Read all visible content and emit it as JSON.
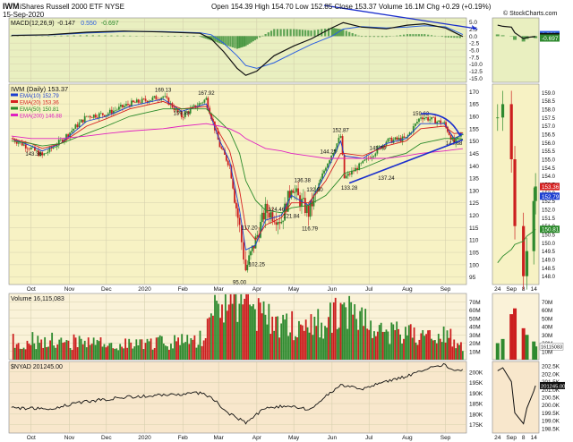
{
  "header": {
    "symbol": "IWM",
    "name": "iShares Russell 2000 ETF",
    "exchange": "NYSE",
    "date": "15-Sep-2020",
    "ohlc": {
      "open_label": "Open",
      "open": "154.39",
      "high_label": "High",
      "high": "154.70",
      "low_label": "Low",
      "low": "152.85",
      "close_label": "Close",
      "close": "153.37",
      "volume_label": "Volume",
      "volume": "16.1M",
      "chg_label": "Chg",
      "chg": "+0.29 (+0.19%)"
    },
    "copyright": "© StockCharts.com"
  },
  "colors": {
    "price_bg": "#f7f2c4",
    "up": "#2f8a2f",
    "down": "#cc1f1f",
    "ema10": "#1c3fd1",
    "ema20": "#d62020",
    "ema50": "#2a8a2a",
    "ema200": "#e020c0",
    "annotation": "#1b2fcc"
  },
  "chart_data": [
    {
      "type": "line",
      "title": "MACD(12,26,9) -0.147, 0.550, -0.697",
      "legend": [
        {
          "name": "MACD(12,26,9)",
          "color": "#111111"
        },
        {
          "name": "-0.147",
          "color": "#111111"
        },
        {
          "name": "0.550",
          "color": "#2a5fe0"
        },
        {
          "name": "-0.697",
          "color": "#2a8a2a"
        }
      ],
      "yticks": [
        5.0,
        2.5,
        0.0,
        -2.5,
        -5.0,
        -7.5,
        -10.0,
        -12.5,
        -15.0
      ],
      "ylim": [
        -16.5,
        6.5
      ],
      "x": [
        "2019-09-15",
        "2019-10-15",
        "2019-11-15",
        "2019-12-15",
        "2020-01-15",
        "2020-02-15",
        "2020-02-24",
        "2020-03-05",
        "2020-03-16",
        "2020-03-23",
        "2020-04-01",
        "2020-04-15",
        "2020-05-01",
        "2020-05-15",
        "2020-06-01",
        "2020-06-10",
        "2020-06-25",
        "2020-07-15",
        "2020-08-01",
        "2020-08-15",
        "2020-09-01",
        "2020-09-15"
      ],
      "series": [
        {
          "name": "-0.147",
          "values": [
            0.2,
            0.5,
            1.4,
            1.8,
            1.5,
            1.0,
            -1.0,
            -5.5,
            -11.5,
            -14.0,
            -12.5,
            -7.0,
            -3.5,
            -1.0,
            3.0,
            4.8,
            3.2,
            2.6,
            3.9,
            4.4,
            2.9,
            -0.15
          ]
        },
        {
          "name": "0.550",
          "values": [
            0.3,
            0.4,
            1.1,
            1.6,
            1.6,
            1.2,
            0.5,
            -2.5,
            -7.0,
            -10.5,
            -11.5,
            -9.5,
            -6.0,
            -3.0,
            0.0,
            2.5,
            3.4,
            2.9,
            3.2,
            3.7,
            3.3,
            0.55
          ]
        },
        {
          "name": "-0.697",
          "type": "histogram",
          "values": [
            -0.1,
            0.1,
            0.3,
            0.2,
            -0.1,
            -0.2,
            -1.5,
            -3.0,
            -4.5,
            -3.5,
            -1.0,
            2.5,
            2.5,
            2.0,
            3.0,
            2.3,
            -0.2,
            -0.3,
            0.7,
            0.7,
            -0.4,
            -0.7
          ]
        }
      ]
    },
    {
      "type": "candlestick",
      "title": "IWM (Daily) 153.37",
      "legend": [
        {
          "name": "IWM (Daily) 153.37",
          "color": "#111111"
        },
        {
          "name": "EMA(10) 152.79",
          "color": "#1c3fd1"
        },
        {
          "name": "EMA(20) 153.36",
          "color": "#d62020"
        },
        {
          "name": "EMA(50) 150.81",
          "color": "#2a8a2a"
        },
        {
          "name": "EMA(200) 146.88",
          "color": "#e020c0"
        }
      ],
      "yticks": [
        170,
        165,
        160,
        155,
        150,
        145,
        140,
        135,
        130,
        125,
        120,
        115,
        110,
        105,
        100,
        95
      ],
      "ylim": [
        92,
        173
      ],
      "x": [
        "2019-09-15",
        "2019-10-01",
        "2019-10-10",
        "2019-10-25",
        "2019-11-15",
        "2019-12-01",
        "2019-12-20",
        "2020-01-16",
        "2020-01-31",
        "2020-02-20",
        "2020-03-02",
        "2020-03-10",
        "2020-03-18",
        "2020-03-23",
        "2020-03-31",
        "2020-04-08",
        "2020-04-21",
        "2020-04-29",
        "2020-05-13",
        "2020-05-27",
        "2020-06-08",
        "2020-06-11",
        "2020-06-26",
        "2020-07-15",
        "2020-07-31",
        "2020-08-12",
        "2020-08-31",
        "2020-09-08",
        "2020-09-15"
      ],
      "close": [
        151,
        147,
        144,
        150,
        160,
        161,
        165,
        168,
        160,
        167,
        148,
        140,
        115,
        98,
        110,
        122,
        118,
        131,
        121,
        140,
        152,
        135,
        141,
        150,
        151,
        160,
        157,
        149,
        153
      ],
      "series": [
        {
          "name": "EMA(10) 152.79",
          "values": [
            151,
            148,
            146,
            149,
            158,
            160,
            164,
            167,
            162,
            165,
            150,
            142,
            122,
            106,
            108,
            118,
            120,
            128,
            124,
            137,
            150,
            144,
            143,
            149,
            151,
            157,
            157,
            151,
            152.79
          ]
        },
        {
          "name": "EMA(20) 153.36",
          "values": [
            151,
            149,
            147,
            149,
            156,
            159,
            163,
            166,
            163,
            164,
            153,
            146,
            130,
            115,
            110,
            116,
            119,
            125,
            125,
            134,
            145,
            145,
            144,
            148,
            150,
            155,
            156,
            153,
            153.36
          ]
        },
        {
          "name": "EMA(50) 150.81",
          "values": [
            150,
            149,
            148,
            149,
            153,
            156,
            160,
            163,
            163,
            163,
            158,
            154,
            145,
            134,
            126,
            122,
            121,
            123,
            124,
            128,
            135,
            137,
            139,
            143,
            145,
            149,
            151,
            151,
            150.81
          ]
        },
        {
          "name": "EMA(200) 146.88",
          "values": [
            152,
            151,
            151,
            151,
            152,
            153,
            154,
            155,
            156,
            157,
            156,
            155,
            153,
            151,
            149,
            147,
            146,
            145,
            144,
            143,
            143,
            143,
            143,
            143,
            144,
            145,
            146,
            146.5,
            146.88
          ]
        }
      ],
      "annotations": [
        {
          "text": "143.36",
          "x": "2019-10-03",
          "y": 143.36
        },
        {
          "text": "169.13",
          "x": "2020-01-16",
          "y": 169.13
        },
        {
          "text": "159.88",
          "x": "2020-01-31",
          "y": 159.88
        },
        {
          "text": "167.92",
          "x": "2020-02-20",
          "y": 167.92
        },
        {
          "text": "95.00",
          "x": "2020-03-18",
          "y": 95.0
        },
        {
          "text": "102.25",
          "x": "2020-04-01",
          "y": 102.25
        },
        {
          "text": "117.20",
          "x": "2020-03-26",
          "y": 117.2
        },
        {
          "text": "124.46",
          "x": "2020-04-17",
          "y": 124.46
        },
        {
          "text": "121.84",
          "x": "2020-04-29",
          "y": 121.84
        },
        {
          "text": "136.38",
          "x": "2020-05-08",
          "y": 136.38
        },
        {
          "text": "132.50",
          "x": "2020-05-18",
          "y": 132.5
        },
        {
          "text": "116.79",
          "x": "2020-05-14",
          "y": 116.79
        },
        {
          "text": "144.25",
          "x": "2020-05-29",
          "y": 144.25
        },
        {
          "text": "152.87",
          "x": "2020-06-08",
          "y": 152.87
        },
        {
          "text": "133.28",
          "x": "2020-06-15",
          "y": 133.28
        },
        {
          "text": "145.70",
          "x": "2020-07-08",
          "y": 145.7
        },
        {
          "text": "137.24",
          "x": "2020-07-15",
          "y": 137.24
        },
        {
          "text": "159.62",
          "x": "2020-08-12",
          "y": 159.62
        },
        {
          "text": "147.68",
          "x": "2020-09-08",
          "y": 147.68
        }
      ]
    },
    {
      "type": "bar",
      "title": "Volume 16,115,083",
      "legend": [
        {
          "name": "Volume 16,115,083",
          "color": "#111111"
        }
      ],
      "yticks": [
        "70M",
        "60M",
        "50M",
        "40M",
        "30M",
        "20M",
        "10M"
      ],
      "ylim": [
        0,
        80
      ],
      "unit": "M",
      "x": [
        "2019-09-15",
        "2019-10-15",
        "2019-11-15",
        "2019-12-15",
        "2020-01-15",
        "2020-02-15",
        "2020-03-01",
        "2020-03-15",
        "2020-04-01",
        "2020-04-15",
        "2020-05-01",
        "2020-05-15",
        "2020-06-01",
        "2020-06-15",
        "2020-07-01",
        "2020-07-15",
        "2020-08-01",
        "2020-08-15",
        "2020-09-01",
        "2020-09-15"
      ],
      "values": [
        22,
        24,
        20,
        18,
        21,
        25,
        62,
        68,
        55,
        45,
        40,
        38,
        52,
        55,
        40,
        35,
        30,
        28,
        30,
        16
      ]
    },
    {
      "type": "line",
      "title": "$NYAD 201245.00",
      "legend": [
        {
          "name": "$NYAD 201245.00",
          "color": "#111111"
        }
      ],
      "yticks": [
        200000,
        195000,
        190000,
        185000,
        180000,
        175000
      ],
      "ytick_labels": [
        "200K",
        "195K",
        "190K",
        "185K",
        "180K",
        "175K"
      ],
      "ylim": [
        171000,
        205000
      ],
      "x": [
        "2019-09-15",
        "2019-10-15",
        "2019-11-15",
        "2019-12-15",
        "2020-01-15",
        "2020-02-15",
        "2020-02-24",
        "2020-03-10",
        "2020-03-23",
        "2020-04-08",
        "2020-04-29",
        "2020-05-13",
        "2020-06-08",
        "2020-06-26",
        "2020-07-15",
        "2020-08-01",
        "2020-08-20",
        "2020-09-01",
        "2020-09-08",
        "2020-09-15"
      ],
      "values": [
        183000,
        182500,
        186000,
        188000,
        189000,
        190000,
        188000,
        180000,
        176000,
        183000,
        184000,
        182000,
        194000,
        192000,
        195500,
        198000,
        202000,
        203500,
        200000,
        201245
      ]
    }
  ],
  "xaxis": {
    "ticks": [
      {
        "label": "Oct",
        "x": "2019-10-01"
      },
      {
        "label": "Nov",
        "x": "2019-11-01"
      },
      {
        "label": "Dec",
        "x": "2019-12-01"
      },
      {
        "label": "2020",
        "x": "2020-01-01"
      },
      {
        "label": "Feb",
        "x": "2020-02-01"
      },
      {
        "label": "Mar",
        "x": "2020-03-01"
      },
      {
        "label": "Apr",
        "x": "2020-04-01"
      },
      {
        "label": "May",
        "x": "2020-05-01"
      },
      {
        "label": "Jun",
        "x": "2020-06-01"
      },
      {
        "label": "Jul",
        "x": "2020-07-01"
      },
      {
        "label": "Aug",
        "x": "2020-08-01"
      },
      {
        "label": "Sep",
        "x": "2020-09-01"
      }
    ]
  },
  "side_panel": {
    "xticks": [
      {
        "label": "24",
        "x": "2020-08-24"
      },
      {
        "label": "Sep",
        "x": "2020-09-01"
      },
      {
        "label": "8",
        "x": "2020-09-08"
      },
      {
        "label": "14",
        "x": "2020-09-14"
      }
    ],
    "macd_ticks": [
      "0.550",
      "-0.147",
      "-0.697"
    ],
    "price_ticks": [
      "159.0",
      "158.5",
      "158.0",
      "157.5",
      "157.0",
      "156.5",
      "156.0",
      "155.5",
      "155.0",
      "154.5",
      "154.0",
      "153.5",
      "153.0",
      "152.5",
      "152.0",
      "151.5",
      "151.0",
      "150.5",
      "150.0",
      "149.5",
      "149.0",
      "148.5",
      "148.0"
    ],
    "price_labels": [
      "153.37",
      "153.36",
      "152.79",
      "150.81"
    ],
    "volume_ticks": [
      "70M",
      "60M",
      "50M",
      "40M",
      "30M",
      "20M",
      "10M"
    ],
    "volume_label": "16115083",
    "nyad_ticks": [
      "202.5K",
      "202.0K",
      "201.5K",
      "201.0K",
      "200.5K",
      "200.0K",
      "199.5K",
      "199.0K",
      "198.5K"
    ],
    "nyad_label": "201245.00",
    "x": [
      "2020-08-24",
      "2020-08-27",
      "2020-09-01",
      "2020-09-03",
      "2020-09-08",
      "2020-09-10",
      "2020-09-14",
      "2020-09-15"
    ],
    "macd": [
      3.9,
      3.5,
      3.2,
      1.2,
      -0.9,
      -0.5,
      -0.2,
      -0.15
    ],
    "price": [
      157.5,
      158.3,
      155.0,
      151.0,
      148.0,
      149.5,
      152.5,
      153.37
    ],
    "ema50": [
      148.8,
      149.2,
      149.6,
      149.9,
      150.1,
      150.4,
      150.7,
      150.81
    ],
    "volume": [
      20,
      25,
      55,
      62,
      38,
      30,
      22,
      16
    ],
    "nyad": [
      202.2,
      202.4,
      201.5,
      199.5,
      198.8,
      199.8,
      200.9,
      201.25
    ]
  }
}
